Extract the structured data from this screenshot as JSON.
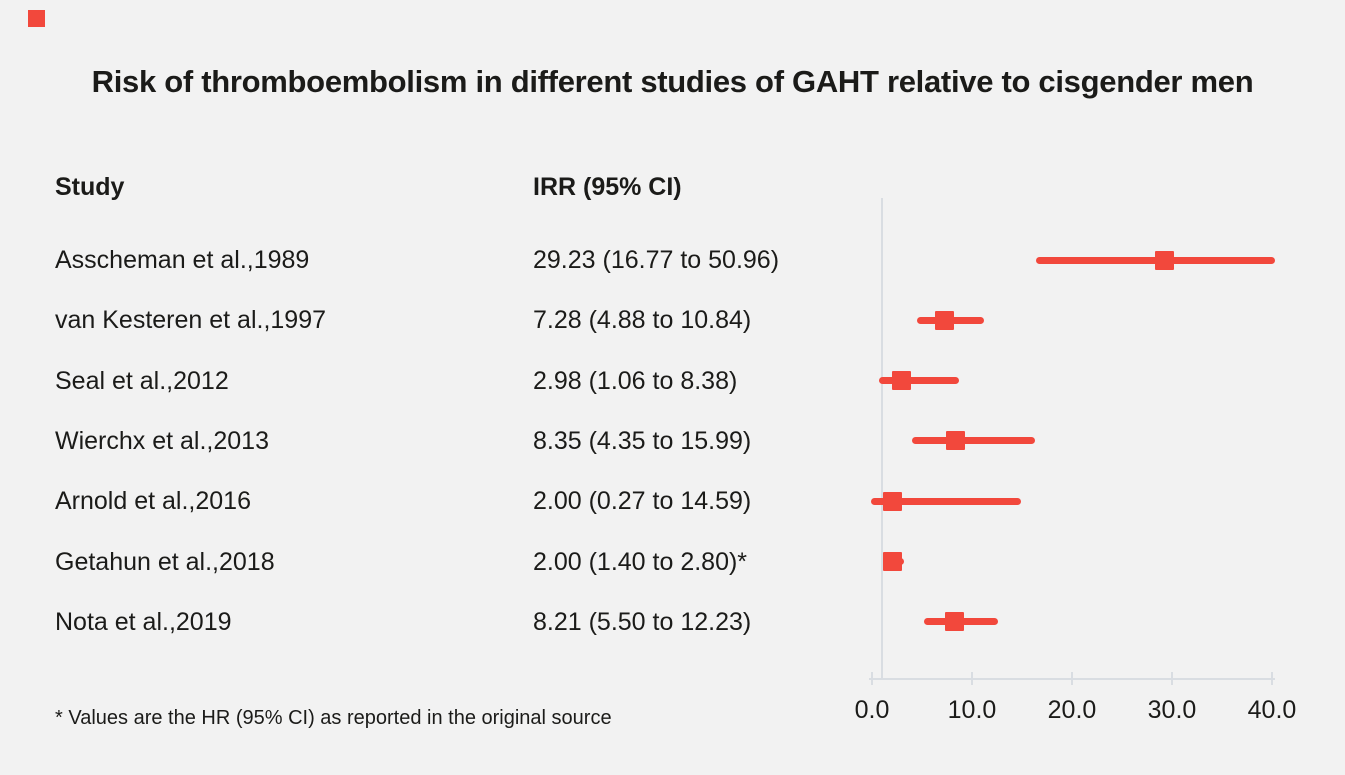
{
  "page": {
    "title": "Risk of thromboembolism in different studies of GAHT relative to cisgender men",
    "footnote": "* Values are the HR (95% CI) as reported in the original source"
  },
  "table": {
    "col_study": "Study",
    "col_irr": "IRR (95% CI)"
  },
  "colors": {
    "background": "#f2f2f2",
    "text": "#1b1b19",
    "marker": "#f2483c",
    "axis": "#d9dde2"
  },
  "chart_data": {
    "type": "scatter",
    "variant": "forest-plot",
    "title": "Risk of thromboembolism in different studies of GAHT relative to cisgender men",
    "xlabel": "",
    "ylabel": "",
    "xlim": [
      0,
      40
    ],
    "grid": false,
    "reference_line_x": 1.0,
    "x_axis": {
      "tick_labels": [
        "0.0",
        "10.0",
        "20.0",
        "30.0",
        "40.0"
      ],
      "tick_values": [
        0,
        10,
        20,
        30,
        40
      ]
    },
    "rows": [
      {
        "study": "Asscheman et al.,1989",
        "irr_label": "29.23 (16.77 to 50.96)",
        "irr": 29.23,
        "ci_low": 16.77,
        "ci_high": 50.96
      },
      {
        "study": "van Kesteren et al.,1997",
        "irr_label": "7.28 (4.88 to 10.84)",
        "irr": 7.28,
        "ci_low": 4.88,
        "ci_high": 10.84
      },
      {
        "study": "Seal et al.,2012",
        "irr_label": "2.98 (1.06 to 8.38)",
        "irr": 2.98,
        "ci_low": 1.06,
        "ci_high": 8.38
      },
      {
        "study": "Wierchx et al.,2013",
        "irr_label": "8.35 (4.35 to 15.99)",
        "irr": 8.35,
        "ci_low": 4.35,
        "ci_high": 15.99
      },
      {
        "study": "Arnold et al.,2016",
        "irr_label": "2.00 (0.27 to 14.59)",
        "irr": 2.0,
        "ci_low": 0.27,
        "ci_high": 14.59
      },
      {
        "study": "Getahun et al.,2018",
        "irr_label": "2.00 (1.40 to 2.80)*",
        "irr": 2.0,
        "ci_low": 1.4,
        "ci_high": 2.8
      },
      {
        "study": "Nota et al.,2019",
        "irr_label": "8.21 (5.50 to 12.23)",
        "irr": 8.21,
        "ci_low": 5.5,
        "ci_high": 12.23
      }
    ]
  }
}
